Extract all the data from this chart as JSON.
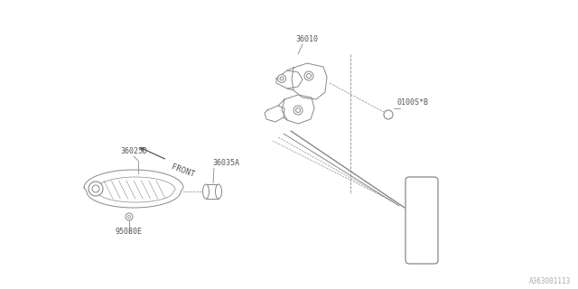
{
  "bg_color": "#ffffff",
  "lc": "#888888",
  "lc_dark": "#555555",
  "tc": "#555555",
  "labels": {
    "36010": "36010",
    "0100SB": "0100S*B",
    "36025D": "36025D",
    "36035A": "36035A",
    "95080E": "95080E",
    "diagram_num": "A363001113",
    "front": "FRONT"
  },
  "figsize": [
    6.4,
    3.2
  ],
  "dpi": 100
}
